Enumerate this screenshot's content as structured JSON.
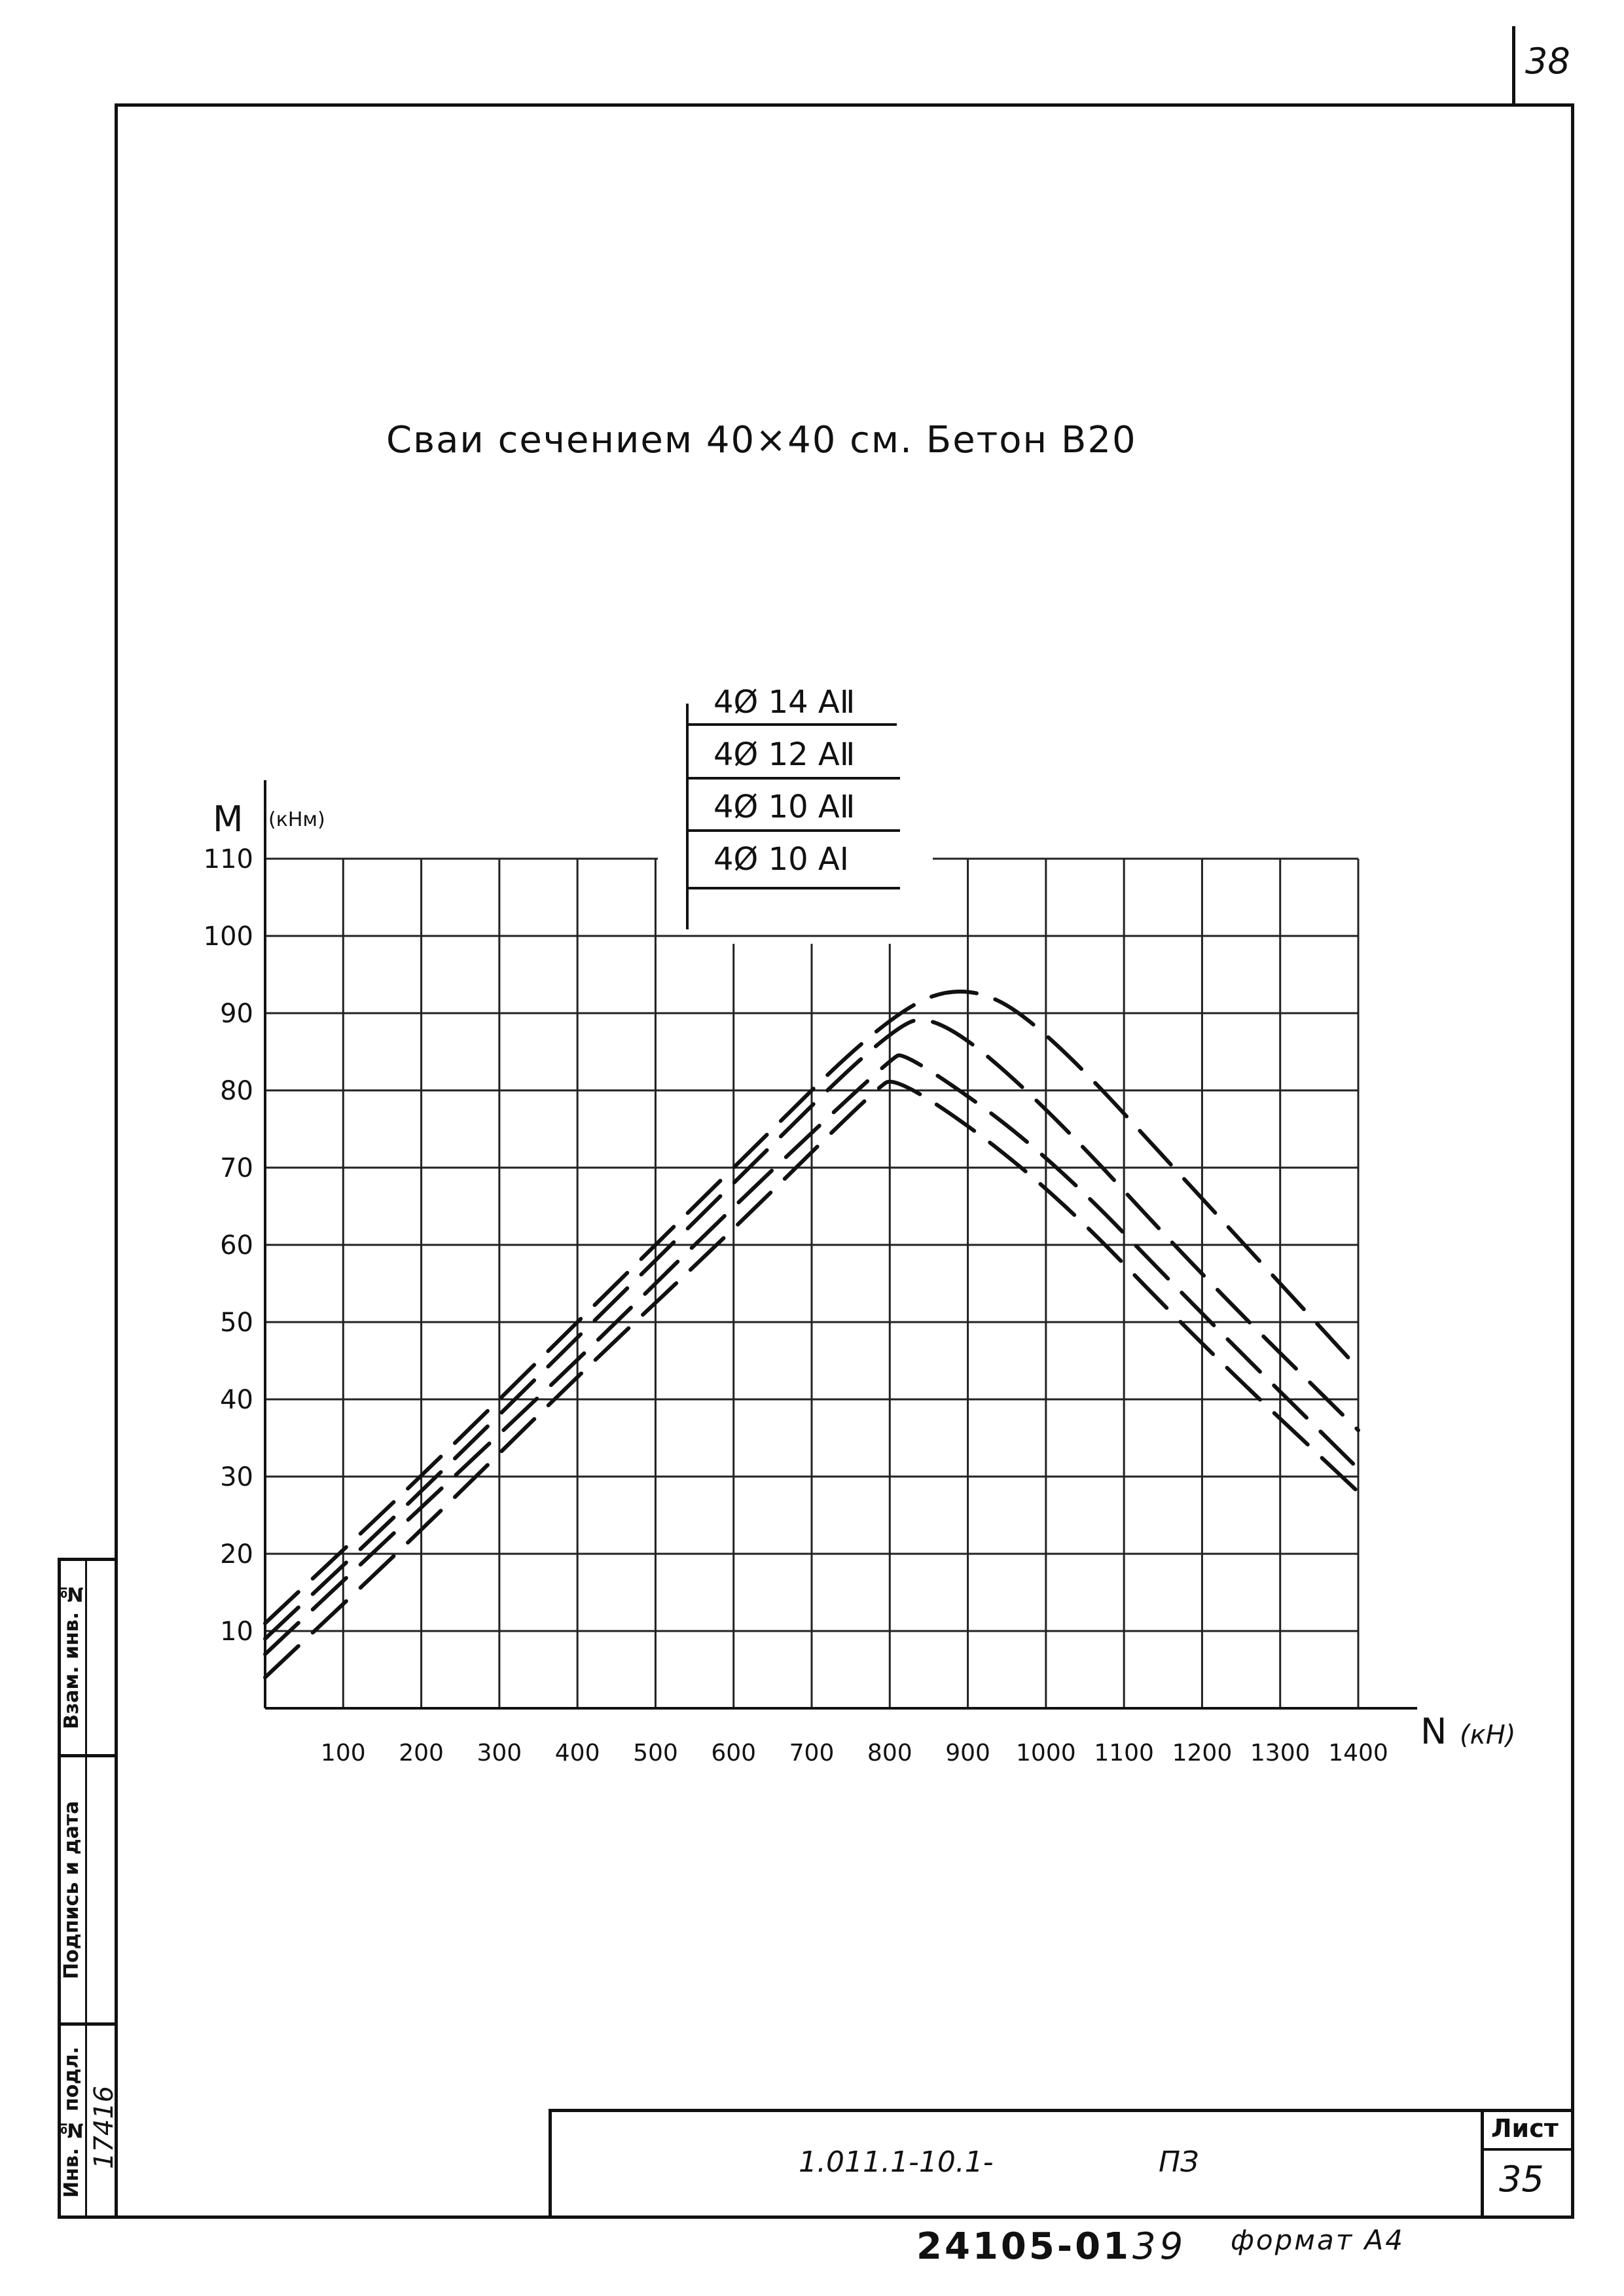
{
  "page_number": "38",
  "title": "Сваи сечением 40×40 см. Бетон В20",
  "legend": [
    {
      "label": "4Ø 14 АⅡ"
    },
    {
      "label": "4Ø 12 АⅡ"
    },
    {
      "label": "4Ø 10 АⅡ"
    },
    {
      "label": "4Ø 10 АⅠ"
    }
  ],
  "chart_data": {
    "type": "line",
    "ylabel": "M",
    "ylabel_unit": "(кНм)",
    "xlabel": "N",
    "xlabel_unit": "(кН)",
    "xlim": [
      0,
      1400
    ],
    "ylim": [
      0,
      110
    ],
    "x_ticks": [
      100,
      200,
      300,
      400,
      500,
      600,
      700,
      800,
      900,
      1000,
      1100,
      1200,
      1300,
      1400
    ],
    "y_ticks": [
      10,
      20,
      30,
      40,
      50,
      60,
      70,
      80,
      90,
      100,
      110
    ],
    "grid": true,
    "line_style": "dashed",
    "series": [
      {
        "name": "4Ø 14 АⅡ",
        "x": [
          0,
          200,
          400,
          600,
          800,
          900,
          1000,
          1200,
          1400
        ],
        "y": [
          11,
          30,
          50,
          70,
          90,
          94,
          88,
          66,
          44
        ]
      },
      {
        "name": "4Ø 12 АⅡ",
        "x": [
          0,
          200,
          400,
          600,
          800,
          860,
          1000,
          1200,
          1400
        ],
        "y": [
          9,
          28,
          48,
          68,
          88,
          90,
          78,
          56,
          36
        ]
      },
      {
        "name": "4Ø 10 АⅡ",
        "x": [
          0,
          200,
          400,
          600,
          800,
          820,
          1000,
          1200,
          1400
        ],
        "y": [
          7,
          26,
          45,
          65,
          84,
          85,
          72,
          51,
          31
        ]
      },
      {
        "name": "4Ø 10 АⅠ",
        "x": [
          0,
          200,
          400,
          600,
          780,
          810,
          1000,
          1200,
          1400
        ],
        "y": [
          4,
          23,
          43,
          62,
          80,
          82,
          68,
          47,
          28
        ]
      }
    ]
  },
  "side_stamp": {
    "inv_no_orig": "Инв. № подл.",
    "inv_no_orig_value": "17416",
    "signature_date": "Подпись и дата",
    "replaced_inv": "Взам. инв. №"
  },
  "title_block": {
    "doc_code": "1.011.1-10.1-",
    "doc_suffix": "ПЗ",
    "sheet_label": "Лист",
    "sheet_number": "35"
  },
  "footer": {
    "archive_code": "24105-01",
    "archive_num": "39",
    "format": "формат А4"
  }
}
